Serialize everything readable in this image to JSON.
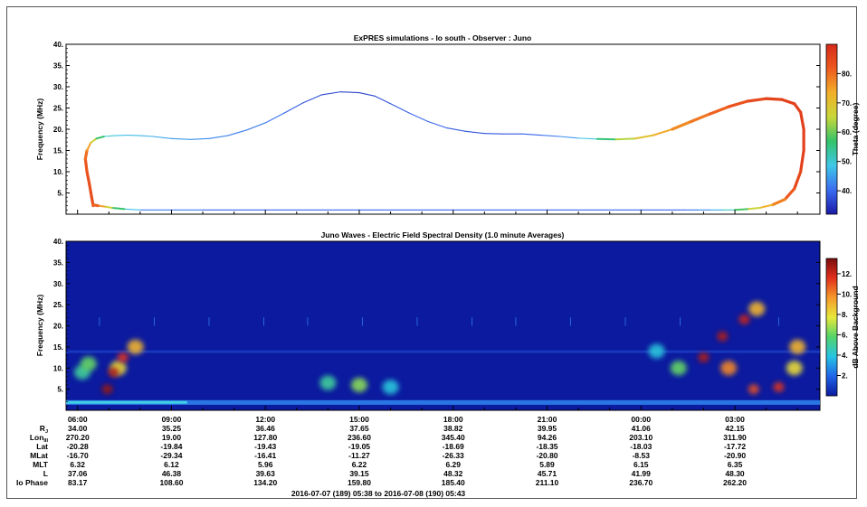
{
  "colors": {
    "spec_background": "#0b1a9e",
    "theta_stops": [
      "#1a1aa6",
      "#3b6cf0",
      "#3fc8e8",
      "#34c36a",
      "#c8d83a",
      "#f2b02a",
      "#ee5a1e",
      "#d62a1a"
    ],
    "db_stops": [
      "#0b1a9e",
      "#1f64e8",
      "#27c4e4",
      "#52d46a",
      "#e8e83a",
      "#f59a2a",
      "#e2301c",
      "#7a0c0c"
    ]
  },
  "chart_data": [
    {
      "type": "line",
      "title": "ExPRES simulations - Io south - Observer : Juno",
      "ylabel": "Frequency (MHz)",
      "ylim": [
        0,
        40
      ],
      "yticks": [
        "5.",
        "10.",
        "15.",
        "20.",
        "25.",
        "30.",
        "35.",
        "40."
      ],
      "xlim_hours": [
        5.633,
        29.717
      ],
      "colorbar": {
        "label": "Theta (degree)",
        "range": [
          32,
          90
        ],
        "ticks": [
          "40.",
          "50.",
          "60.",
          "70.",
          "80."
        ]
      },
      "series": [
        {
          "x_hours": [
            6.5,
            6.45,
            6.38,
            6.3,
            6.25,
            6.3,
            6.42,
            6.6,
            6.85,
            7.2,
            7.6,
            8.0,
            8.4,
            9.0,
            9.6,
            10.2,
            10.8,
            11.4,
            12.0,
            12.6,
            13.2,
            13.8,
            14.4,
            15.0,
            15.5,
            16.0,
            16.6,
            17.2,
            17.8,
            18.4,
            19.0,
            19.6,
            20.2,
            20.8,
            21.4,
            22.0,
            22.6,
            23.2,
            23.8,
            24.4,
            25.0,
            25.6,
            26.2,
            26.8,
            27.4,
            28.0,
            28.5,
            28.9,
            29.1,
            29.2,
            29.2,
            29.1,
            28.9,
            28.6,
            28.2,
            27.8,
            27.4,
            27.0,
            26.6,
            26.2,
            25.8,
            25.4,
            24.0,
            20.0,
            15.0,
            10.0,
            8.0,
            7.5,
            7.1,
            6.85,
            6.65,
            6.5
          ],
          "y_mhz": [
            2,
            4,
            7,
            10,
            13,
            15,
            16.8,
            17.8,
            18.3,
            18.5,
            18.6,
            18.5,
            18.3,
            17.8,
            17.6,
            17.8,
            18.5,
            19.8,
            21.5,
            23.8,
            26.2,
            28.1,
            28.8,
            28.6,
            27.8,
            26.0,
            23.8,
            21.8,
            20.3,
            19.5,
            19.0,
            18.9,
            18.9,
            18.6,
            18.3,
            17.9,
            17.7,
            17.6,
            17.8,
            18.6,
            20.0,
            21.8,
            23.6,
            25.3,
            26.6,
            27.2,
            27.0,
            26.0,
            24.0,
            20.0,
            15.0,
            10.0,
            6.0,
            3.5,
            2.2,
            1.5,
            1.2,
            1.0,
            1.0,
            1.0,
            1.0,
            1.0,
            1.0,
            1.0,
            1.0,
            1.0,
            1.0,
            1.2,
            1.5,
            1.8,
            2.0,
            2.2
          ],
          "theta_deg": [
            84,
            84,
            84,
            83,
            82,
            78,
            72,
            62,
            52,
            48,
            48,
            47,
            46,
            45,
            44,
            43,
            42,
            42,
            42,
            40,
            38,
            37,
            36,
            36,
            37,
            38,
            40,
            40,
            39,
            38,
            38,
            38,
            39,
            40,
            42,
            46,
            52,
            60,
            68,
            72,
            76,
            78,
            80,
            82,
            84,
            85,
            86,
            86,
            86,
            86,
            86,
            86,
            84,
            80,
            76,
            70,
            62,
            54,
            48,
            44,
            42,
            40,
            40,
            40,
            40,
            40,
            44,
            52,
            62,
            72,
            78,
            84
          ]
        }
      ]
    },
    {
      "type": "heatmap",
      "title": "Juno Waves - Electric Field Spectral Density (1.0 minute Averages)",
      "ylabel": "Frequency (MHz)",
      "ylim": [
        0,
        40
      ],
      "yticks": [
        "5.",
        "10.",
        "15.",
        "20.",
        "25.",
        "30.",
        "35.",
        "40."
      ],
      "xlim_hours": [
        5.633,
        29.717
      ],
      "colorbar": {
        "label": "dB Above Background",
        "range": [
          0,
          13.5
        ],
        "ticks": [
          "2.",
          "4.",
          "6.",
          "8.",
          "10.",
          "12."
        ]
      },
      "features": [
        {
          "hour": 6.15,
          "freq_mhz": 9.0,
          "db": 5.0
        },
        {
          "hour": 6.35,
          "freq_mhz": 11.0,
          "db": 6.0
        },
        {
          "hour": 6.95,
          "freq_mhz": 5.0,
          "db": 13.0
        },
        {
          "hour": 7.15,
          "freq_mhz": 9.0,
          "db": 12.5
        },
        {
          "hour": 7.45,
          "freq_mhz": 12.5,
          "db": 11.5
        },
        {
          "hour": 7.85,
          "freq_mhz": 15.0,
          "db": 9.0
        },
        {
          "hour": 7.3,
          "freq_mhz": 10.0,
          "db": 8.0
        },
        {
          "hour": 14.0,
          "freq_mhz": 6.5,
          "db": 5.0
        },
        {
          "hour": 15.0,
          "freq_mhz": 6.0,
          "db": 6.5
        },
        {
          "hour": 16.0,
          "freq_mhz": 5.5,
          "db": 4.0
        },
        {
          "hour": 26.0,
          "freq_mhz": 12.5,
          "db": 12.5
        },
        {
          "hour": 26.6,
          "freq_mhz": 17.5,
          "db": 12.5
        },
        {
          "hour": 27.3,
          "freq_mhz": 21.5,
          "db": 12.0
        },
        {
          "hour": 27.7,
          "freq_mhz": 24.0,
          "db": 9.0
        },
        {
          "hour": 26.8,
          "freq_mhz": 10.0,
          "db": 10.0
        },
        {
          "hour": 27.6,
          "freq_mhz": 5.0,
          "db": 11.0
        },
        {
          "hour": 28.4,
          "freq_mhz": 5.5,
          "db": 11.5
        },
        {
          "hour": 29.0,
          "freq_mhz": 15.0,
          "db": 9.0
        },
        {
          "hour": 28.9,
          "freq_mhz": 10.0,
          "db": 8.0
        },
        {
          "hour": 25.2,
          "freq_mhz": 10.0,
          "db": 6.0
        },
        {
          "hour": 24.5,
          "freq_mhz": 14.0,
          "db": 4.0
        }
      ]
    }
  ],
  "ephemeris": {
    "time_labels": [
      "06:00",
      "09:00",
      "12:00",
      "15:00",
      "18:00",
      "21:00",
      "00:00",
      "03:00"
    ],
    "time_hours": [
      6,
      9,
      12,
      15,
      18,
      21,
      24,
      27
    ],
    "rows": [
      {
        "label": "R",
        "sub": "J",
        "values": [
          "34.00",
          "35.25",
          "36.46",
          "37.65",
          "38.82",
          "39.95",
          "41.06",
          "42.15"
        ]
      },
      {
        "label": "Lon",
        "sub": "III",
        "values": [
          "270.20",
          "19.00",
          "127.80",
          "236.60",
          "345.40",
          "94.26",
          "203.10",
          "311.90"
        ]
      },
      {
        "label": "Lat",
        "sub": "",
        "values": [
          "-20.28",
          "-19.84",
          "-19.43",
          "-19.05",
          "-18.69",
          "-18.35",
          "-18.03",
          "-17.72"
        ]
      },
      {
        "label": "MLat",
        "sub": "",
        "values": [
          "-16.70",
          "-29.34",
          "-16.41",
          "-11.27",
          "-26.33",
          "-20.80",
          "-8.53",
          "-20.90"
        ]
      },
      {
        "label": "MLT",
        "sub": "",
        "values": [
          "6.32",
          "6.12",
          "5.96",
          "6.22",
          "6.29",
          "5.89",
          "6.15",
          "6.35"
        ]
      },
      {
        "label": "L",
        "sub": "",
        "values": [
          "37.06",
          "46.38",
          "39.63",
          "39.15",
          "48.32",
          "45.71",
          "41.99",
          "48.30"
        ]
      },
      {
        "label": "Io Phase",
        "sub": "",
        "values": [
          "83.17",
          "108.60",
          "134.20",
          "159.80",
          "185.40",
          "211.10",
          "236.70",
          "262.20"
        ]
      }
    ],
    "date_range": "2016-07-07 (189) 05:38 to 2016-07-08 (190) 05:43"
  }
}
